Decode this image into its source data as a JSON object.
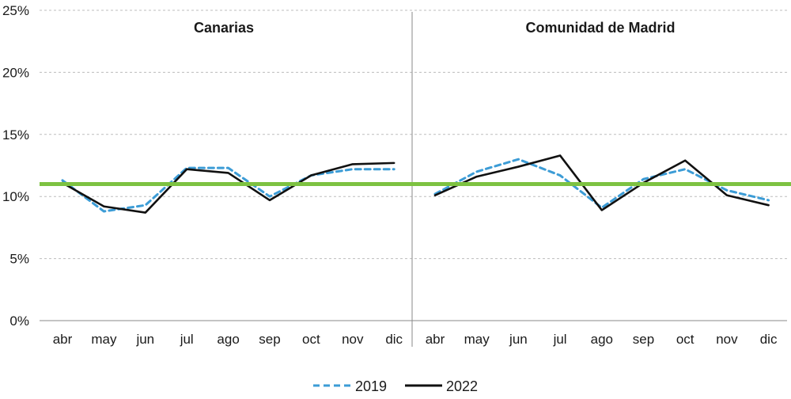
{
  "chart_data": {
    "type": "line",
    "panels": [
      {
        "title": "Canarias",
        "categories": [
          "abr",
          "may",
          "jun",
          "jul",
          "ago",
          "sep",
          "oct",
          "nov",
          "dic"
        ],
        "series": [
          {
            "name": "2019",
            "values": [
              11.3,
              8.8,
              9.3,
              12.3,
              12.3,
              10.0,
              11.7,
              12.2,
              12.2
            ]
          },
          {
            "name": "2022",
            "values": [
              11.1,
              9.2,
              8.7,
              12.2,
              11.9,
              9.7,
              11.7,
              12.6,
              12.7
            ]
          }
        ]
      },
      {
        "title": "Comunidad de Madrid",
        "categories": [
          "abr",
          "may",
          "jun",
          "jul",
          "ago",
          "sep",
          "oct",
          "nov",
          "dic"
        ],
        "series": [
          {
            "name": "2019",
            "values": [
              10.2,
              12.0,
              13.0,
              11.7,
              9.1,
              11.4,
              12.2,
              10.5,
              9.7
            ]
          },
          {
            "name": "2022",
            "values": [
              10.1,
              11.6,
              12.4,
              13.3,
              8.9,
              11.1,
              12.9,
              10.1,
              9.3
            ]
          }
        ]
      }
    ],
    "reference_line": {
      "value": 11.0,
      "color": "#7dc241"
    },
    "yticks": [
      "0%",
      "5%",
      "10%",
      "15%",
      "20%",
      "25%"
    ],
    "ylim": [
      0,
      25
    ],
    "grid": true,
    "legend_position": "bottom",
    "series_styles": [
      {
        "name": "2019",
        "color": "#3c9cd6",
        "dash": "dashed"
      },
      {
        "name": "2022",
        "color": "#111111",
        "dash": "solid"
      }
    ]
  }
}
